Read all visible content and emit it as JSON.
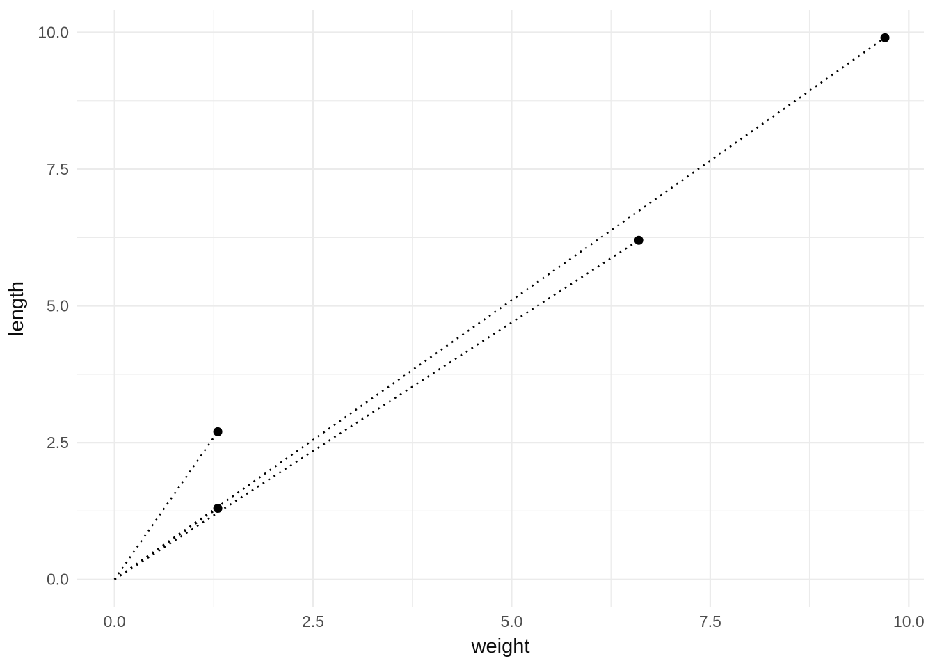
{
  "chart_data": {
    "type": "scatter",
    "title": "",
    "xlabel": "weight",
    "ylabel": "length",
    "points": [
      {
        "x": 1.3,
        "y": 2.7
      },
      {
        "x": 1.3,
        "y": 1.3
      },
      {
        "x": 6.6,
        "y": 6.2
      },
      {
        "x": 9.7,
        "y": 9.9
      }
    ],
    "segments_from_origin": true,
    "origin": {
      "x": 0,
      "y": 0
    },
    "line_style": "dotted",
    "x_ticks": [
      0,
      2.5,
      5,
      7.5,
      10
    ],
    "x_tick_labels": [
      "0.0",
      "2.5",
      "5.0",
      "7.5",
      "10.0"
    ],
    "y_ticks": [
      0,
      2.5,
      5,
      7.5,
      10
    ],
    "y_tick_labels": [
      "0.0",
      "2.5",
      "5.0",
      "7.5",
      "10.0"
    ],
    "x_minor_ticks": [
      1.25,
      3.75,
      6.25,
      8.75
    ],
    "y_minor_ticks": [
      1.25,
      3.75,
      6.25,
      8.75
    ],
    "xlim": [
      -0.47,
      10.19
    ],
    "ylim": [
      -0.5,
      10.4
    ],
    "grid": "major_and_minor",
    "legend": "none",
    "colors": {
      "background": "#ffffff",
      "major_gridline": "#ebebeb",
      "minor_gridline": "#ebebeb",
      "point": "#000000",
      "segment_line": "#000000",
      "tick_label": "#4d4d4d",
      "axis_title": "#0d0d0d"
    }
  }
}
